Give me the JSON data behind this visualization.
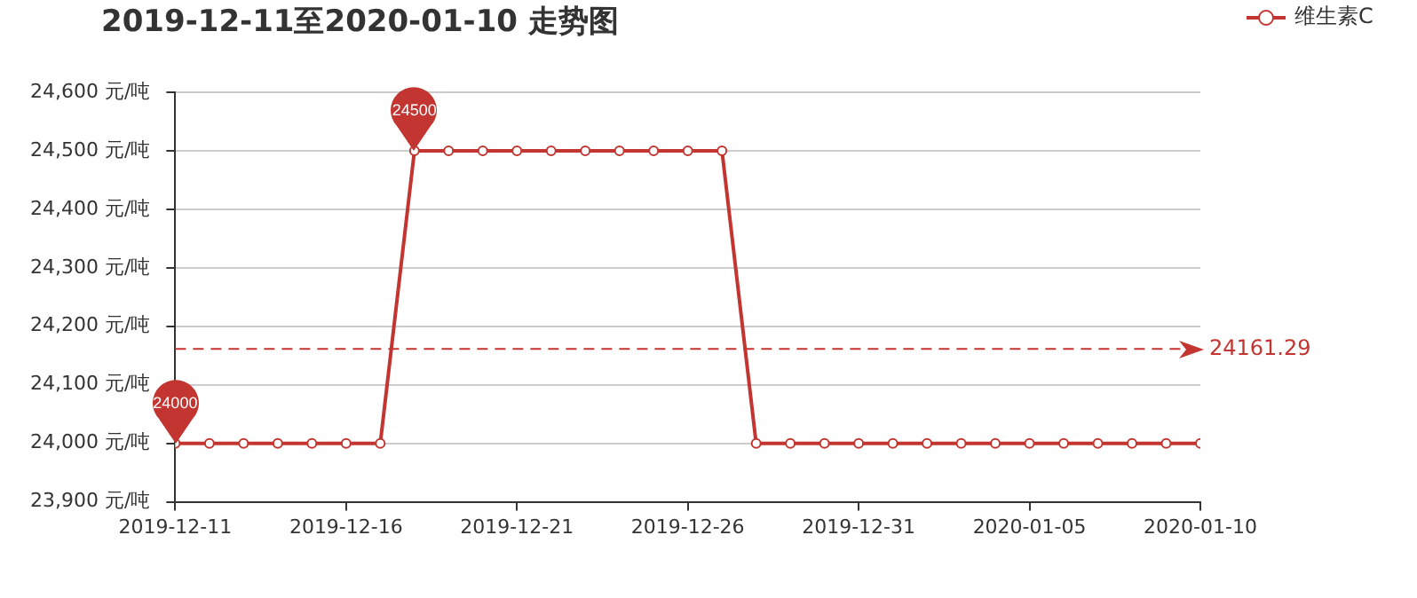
{
  "chart_data": {
    "type": "line",
    "title": "2019-12-11至2020-01-10 走势图",
    "x": [
      "2019-12-11",
      "2019-12-12",
      "2019-12-13",
      "2019-12-14",
      "2019-12-15",
      "2019-12-16",
      "2019-12-17",
      "2019-12-18",
      "2019-12-19",
      "2019-12-20",
      "2019-12-21",
      "2019-12-22",
      "2019-12-23",
      "2019-12-24",
      "2019-12-25",
      "2019-12-26",
      "2019-12-27",
      "2019-12-28",
      "2019-12-29",
      "2019-12-30",
      "2019-12-31",
      "2020-01-01",
      "2020-01-02",
      "2020-01-03",
      "2020-01-04",
      "2020-01-05",
      "2020-01-06",
      "2020-01-07",
      "2020-01-08",
      "2020-01-09",
      "2020-01-10"
    ],
    "series": [
      {
        "name": "维生素C",
        "color": "#c23531",
        "values": [
          24000,
          24000,
          24000,
          24000,
          24000,
          24000,
          24000,
          24500,
          24500,
          24500,
          24500,
          24500,
          24500,
          24500,
          24500,
          24500,
          24500,
          24000,
          24000,
          24000,
          24000,
          24000,
          24000,
          24000,
          24000,
          24000,
          24000,
          24000,
          24000,
          24000,
          24000
        ]
      }
    ],
    "xlim": [
      "2019-12-11",
      "2020-01-10"
    ],
    "xticks": [
      "2019-12-11",
      "2019-12-16",
      "2019-12-21",
      "2019-12-26",
      "2019-12-31",
      "2020-01-05",
      "2020-01-10"
    ],
    "ylim": [
      23900,
      24600
    ],
    "yticks": [
      {
        "value": 23900,
        "label": "23,900 元/吨"
      },
      {
        "value": 24000,
        "label": "24,000 元/吨"
      },
      {
        "value": 24100,
        "label": "24,100 元/吨"
      },
      {
        "value": 24200,
        "label": "24,200 元/吨"
      },
      {
        "value": 24300,
        "label": "24,300 元/吨"
      },
      {
        "value": 24400,
        "label": "24,400 元/吨"
      },
      {
        "value": 24500,
        "label": "24,500 元/吨"
      },
      {
        "value": 24600,
        "label": "24,600 元/吨"
      }
    ],
    "ref_lines": [
      {
        "axis": "y",
        "value": 24161.29,
        "label": "24161.29",
        "color": "#c23531",
        "line_style": "dashed"
      }
    ],
    "annotations": [
      {
        "text": "24500",
        "x": "2019-12-18",
        "y": 24500
      },
      {
        "text": "24000",
        "x": "2019-12-11",
        "y": 24000
      }
    ],
    "grid": "y",
    "legend": "top right",
    "marker": "circle",
    "line_style": "solid"
  }
}
